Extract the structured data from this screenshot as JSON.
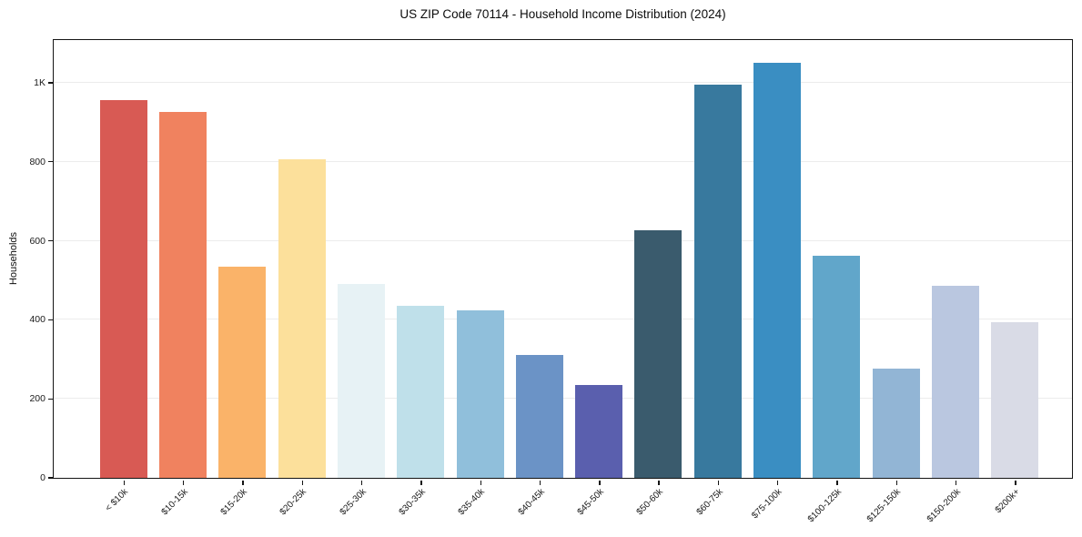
{
  "title": "US ZIP Code 70114 - Household Income Distribution (2024)",
  "chart_data": {
    "type": "bar",
    "title": "US ZIP Code 70114 - Household Income Distribution (2024)",
    "xlabel": "",
    "ylabel": "Households",
    "categories": [
      "< $10k",
      "$10-15k",
      "$15-20k",
      "$20-25k",
      "$25-30k",
      "$30-35k",
      "$35-40k",
      "$40-45k",
      "$45-50k",
      "$50-60k",
      "$60-75k",
      "$75-100k",
      "$100-125k",
      "$125-150k",
      "$150-200k",
      "$200k+"
    ],
    "values": [
      955,
      925,
      535,
      807,
      490,
      435,
      425,
      310,
      235,
      627,
      995,
      1050,
      563,
      277,
      485,
      395
    ],
    "bar_colors": [
      "#d85a54",
      "#f0825f",
      "#fab369",
      "#fce09b",
      "#e7f2f5",
      "#bfe0ea",
      "#90bfdb",
      "#6b93c6",
      "#5a5fae",
      "#3a5b6d",
      "#38799e",
      "#3a8ec2",
      "#61a6ca",
      "#92b5d5",
      "#bac7e0",
      "#d9dbe6"
    ],
    "ylim": [
      0,
      1108
    ],
    "yticks": [
      {
        "value": 0,
        "label": "0"
      },
      {
        "value": 200,
        "label": "200"
      },
      {
        "value": 400,
        "label": "400"
      },
      {
        "value": 600,
        "label": "600"
      },
      {
        "value": 800,
        "label": "800"
      },
      {
        "value": 1000,
        "label": "1K"
      }
    ],
    "grid": "horizontal",
    "legend": "none",
    "background_color": "#ffffff",
    "gridline_color": "#ececec",
    "axis_frame_color": "#141414"
  }
}
